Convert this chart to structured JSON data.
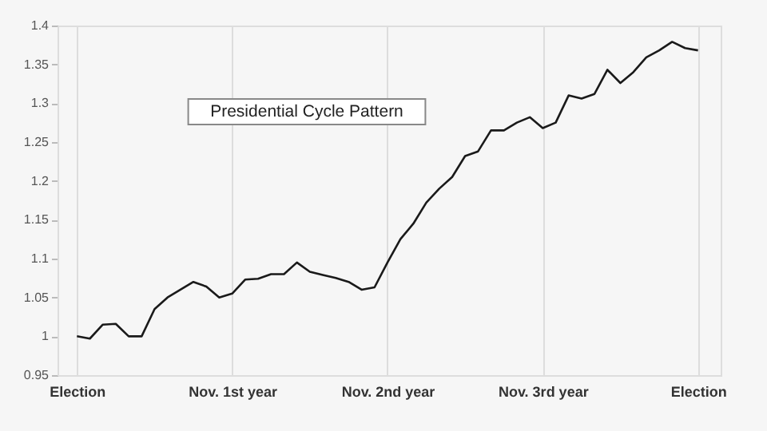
{
  "chart_data": {
    "type": "line",
    "annotations": [
      "Presidential Cycle Pattern"
    ],
    "categories": [
      "Election",
      null,
      null,
      null,
      null,
      null,
      null,
      null,
      null,
      null,
      null,
      null,
      "Nov. 1st year",
      null,
      null,
      null,
      null,
      null,
      null,
      null,
      null,
      null,
      null,
      null,
      "Nov. 2nd year",
      null,
      null,
      null,
      null,
      null,
      null,
      null,
      null,
      null,
      null,
      null,
      "Nov. 3rd year",
      null,
      null,
      null,
      null,
      null,
      null,
      null,
      null,
      null,
      null,
      null,
      "Election"
    ],
    "ylim": [
      0.95,
      1.4
    ],
    "yticks": [
      0.95,
      1,
      1.05,
      1.1,
      1.15,
      1.2,
      1.25,
      1.3,
      1.35,
      1.4
    ],
    "grid": "x",
    "line_style": "solid",
    "series": [
      {
        "color": "#1a1a1a",
        "values": [
          1.0,
          0.997,
          1.015,
          1.016,
          1.0,
          1.0,
          1.035,
          1.05,
          1.06,
          1.07,
          1.064,
          1.05,
          1.055,
          1.073,
          1.074,
          1.08,
          1.08,
          1.095,
          1.083,
          1.079,
          1.075,
          1.07,
          1.06,
          1.063,
          1.095,
          1.125,
          1.145,
          1.172,
          1.19,
          1.205,
          1.232,
          1.238,
          1.265,
          1.265,
          1.275,
          1.282,
          1.268,
          1.275,
          1.31,
          1.306,
          1.312,
          1.343,
          1.326,
          1.34,
          1.359,
          1.368,
          1.379,
          1.371,
          1.368
        ]
      }
    ]
  }
}
